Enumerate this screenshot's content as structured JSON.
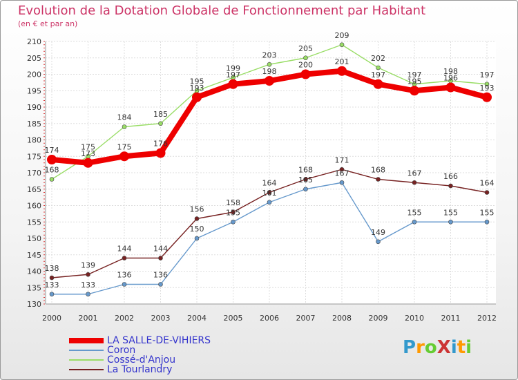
{
  "title": "Evolution de la Dotation Globale de Fonctionnement par Habitant",
  "subtitle": "(en € et par an)",
  "logo": {
    "text": "ProXiti",
    "letters": [
      "P",
      "r",
      "o",
      "x",
      "i",
      "t",
      "i"
    ],
    "colors": [
      "#3399cc",
      "#ff9900",
      "#66cc33",
      "#cc3333",
      "#3399cc",
      "#ff9900",
      "#66cc33"
    ]
  },
  "chart_data": {
    "type": "line",
    "title": "Evolution de la Dotation Globale de Fonctionnement par Habitant",
    "subtitle": "(en € et par an)",
    "xlabel": "",
    "ylabel": "",
    "categories": [
      "2000",
      "2001",
      "2002",
      "2003",
      "2004",
      "2005",
      "2006",
      "2007",
      "2008",
      "2009",
      "2010",
      "2011",
      "2012"
    ],
    "ylim": [
      130,
      210
    ],
    "yticks": [
      130,
      135,
      140,
      145,
      150,
      155,
      160,
      165,
      170,
      175,
      180,
      185,
      190,
      195,
      200,
      205,
      210
    ],
    "grid": true,
    "series": [
      {
        "name": "LA SALLE-DE-VIHIERS",
        "color": "#ee0000",
        "values": [
          174,
          173,
          175,
          176,
          193,
          197,
          198,
          200,
          201,
          197,
          195,
          196,
          193
        ]
      },
      {
        "name": "Coron",
        "color": "#6699cc",
        "values": [
          133,
          133,
          136,
          136,
          150,
          155,
          161,
          165,
          167,
          149,
          155,
          155,
          155
        ]
      },
      {
        "name": "Cossé-d'Anjou",
        "color": "#99dd66",
        "values": [
          168,
          175,
          184,
          185,
          195,
          199,
          203,
          205,
          209,
          202,
          197,
          198,
          197
        ]
      },
      {
        "name": "La Tourlandry",
        "color": "#772222",
        "values": [
          138,
          139,
          144,
          144,
          156,
          158,
          164,
          168,
          171,
          168,
          167,
          166,
          164
        ]
      }
    ]
  }
}
